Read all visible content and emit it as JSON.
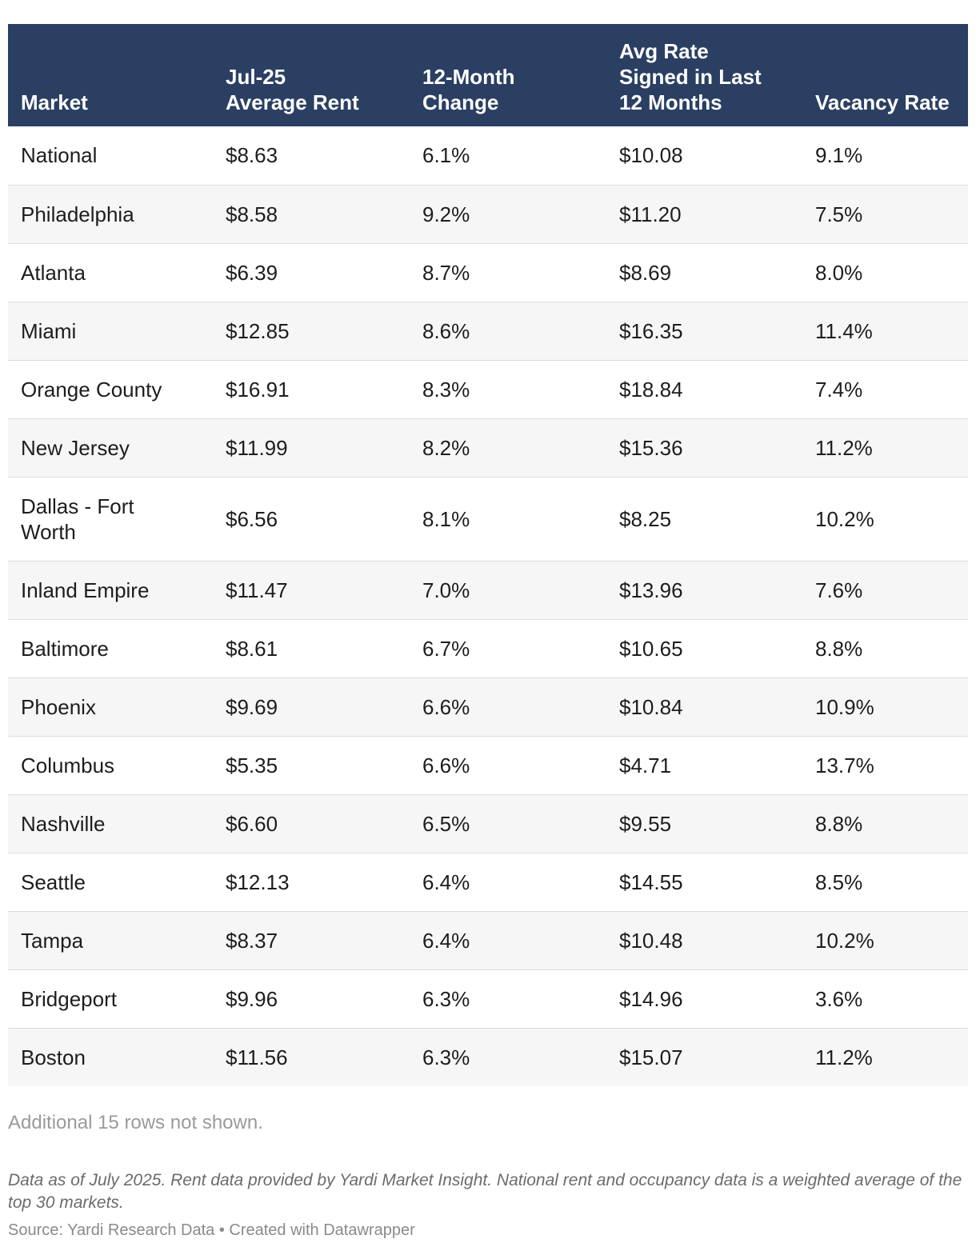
{
  "chart_data": {
    "type": "table",
    "columns": [
      "Market",
      "Jul-25\nAverage Rent",
      "12-Month\nChange",
      "Avg Rate\nSigned in Last\n12 Months",
      "Vacancy Rate"
    ],
    "rows": [
      [
        "National",
        "$8.63",
        "6.1%",
        "$10.08",
        "9.1%"
      ],
      [
        "Philadelphia",
        "$8.58",
        "9.2%",
        "$11.20",
        "7.5%"
      ],
      [
        "Atlanta",
        "$6.39",
        "8.7%",
        "$8.69",
        "8.0%"
      ],
      [
        "Miami",
        "$12.85",
        "8.6%",
        "$16.35",
        "11.4%"
      ],
      [
        "Orange County",
        "$16.91",
        "8.3%",
        "$18.84",
        "7.4%"
      ],
      [
        "New Jersey",
        "$11.99",
        "8.2%",
        "$15.36",
        "11.2%"
      ],
      [
        "Dallas - Fort Worth",
        "$6.56",
        "8.1%",
        "$8.25",
        "10.2%"
      ],
      [
        "Inland Empire",
        "$11.47",
        "7.0%",
        "$13.96",
        "7.6%"
      ],
      [
        "Baltimore",
        "$8.61",
        "6.7%",
        "$10.65",
        "8.8%"
      ],
      [
        "Phoenix",
        "$9.69",
        "6.6%",
        "$10.84",
        "10.9%"
      ],
      [
        "Columbus",
        "$5.35",
        "6.6%",
        "$4.71",
        "13.7%"
      ],
      [
        "Nashville",
        "$6.60",
        "6.5%",
        "$9.55",
        "8.8%"
      ],
      [
        "Seattle",
        "$12.13",
        "6.4%",
        "$14.55",
        "8.5%"
      ],
      [
        "Tampa",
        "$8.37",
        "6.4%",
        "$10.48",
        "10.2%"
      ],
      [
        "Bridgeport",
        "$9.96",
        "6.3%",
        "$14.96",
        "3.6%"
      ],
      [
        "Boston",
        "$11.56",
        "6.3%",
        "$15.07",
        "11.2%"
      ]
    ],
    "more_rows_note": "Additional 15 rows not shown.",
    "footnote": "Data as of July 2025. Rent data provided by Yardi Market Insight. National rent and occupancy data is a weighted average of the top 30 markets.",
    "source": "Source: Yardi Research Data • Created with Datawrapper"
  },
  "colors": {
    "header_bg": "#2b3f63",
    "header_text": "#ffffff",
    "row_alt_bg": "#f6f6f6",
    "row_border": "#dcdcdc"
  }
}
